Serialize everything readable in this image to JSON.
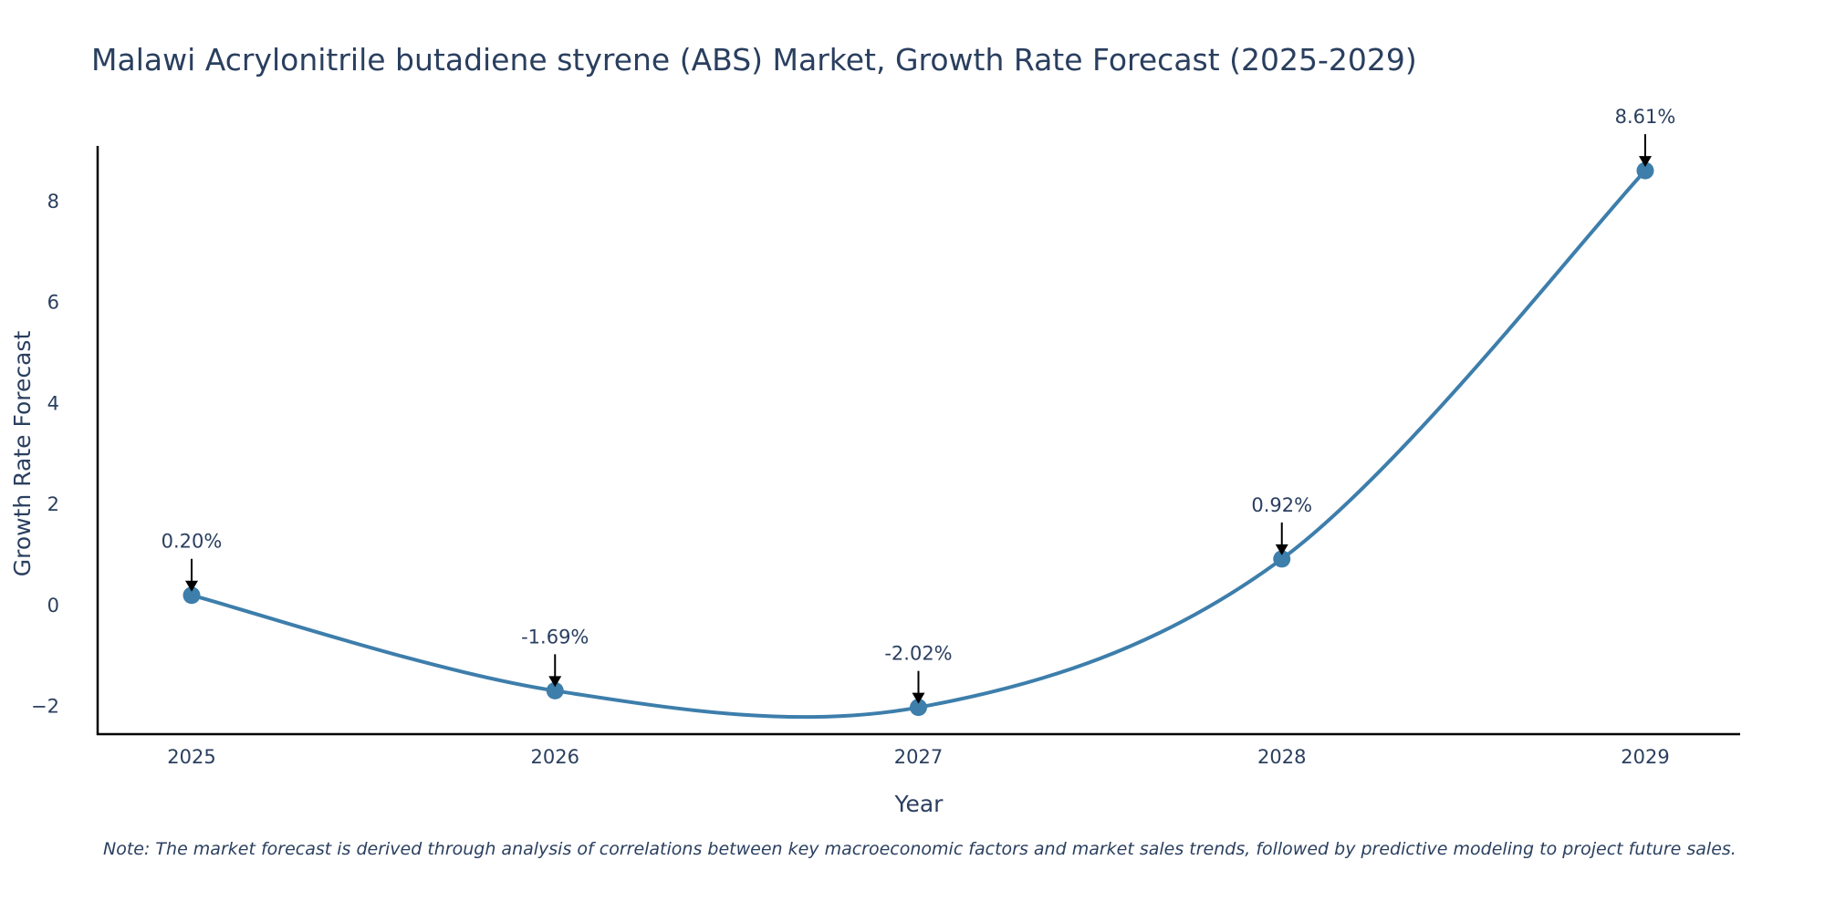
{
  "chart_data": {
    "type": "line",
    "title": "Malawi Acrylonitrile butadiene styrene (ABS) Market, Growth Rate Forecast (2025-2029)",
    "xlabel": "Year",
    "ylabel": "Growth Rate Forecast",
    "categories": [
      "2025",
      "2026",
      "2027",
      "2028",
      "2029"
    ],
    "series": [
      {
        "name": "Growth Rate Forecast",
        "values": [
          0.2,
          -1.69,
          -2.02,
          0.92,
          8.61
        ],
        "labels": [
          "0.20%",
          "-1.69%",
          "-2.02%",
          "0.92%",
          "8.61%"
        ]
      }
    ],
    "yticks": [
      -2,
      0,
      2,
      4,
      6,
      8
    ],
    "ytick_labels": [
      "−2",
      "0",
      "2",
      "4",
      "6",
      "8"
    ],
    "ylim": [
      -2.55,
      9.1
    ],
    "grid": false,
    "line_color": "#3d7eab",
    "marker_color": "#3d7eab",
    "arrow_color": "#000000"
  },
  "note": "Note: The market forecast is derived through analysis of correlations between key macroeconomic factors and market sales trends, followed by predictive modeling to project future sales."
}
